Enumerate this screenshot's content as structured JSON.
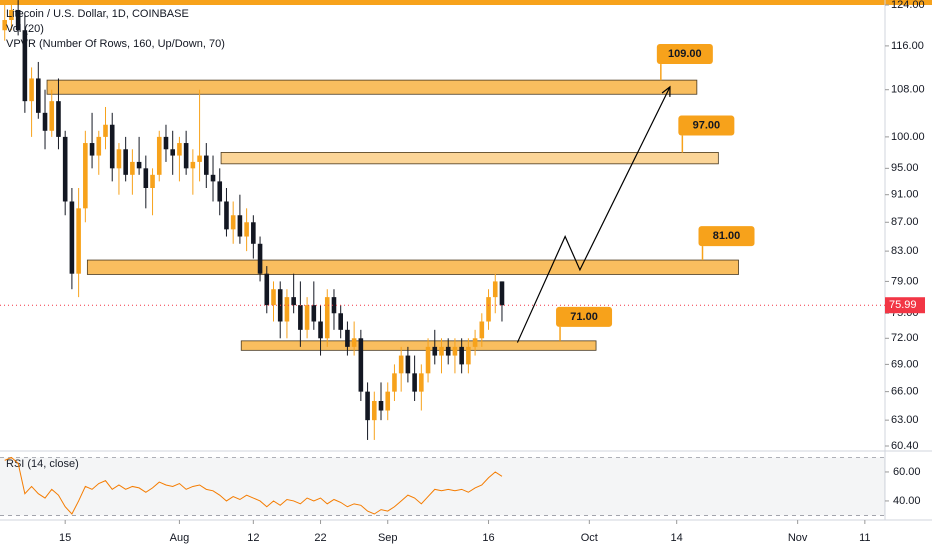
{
  "chart_data": {
    "type": "candlestick",
    "title": "Litecoin / U.S. Dollar, 1D, COINBASE",
    "indicator_labels": [
      "Vol (20)",
      "VPVR (Number Of Rows, 160, Up/Down, 70)"
    ],
    "ylog": true,
    "ylim": [
      60.4,
      124
    ],
    "yticks": [
      {
        "value": 124,
        "label": "124.00"
      },
      {
        "value": 116,
        "label": "116.00"
      },
      {
        "value": 108,
        "label": "108.00"
      },
      {
        "value": 100,
        "label": "100.00"
      },
      {
        "value": 95,
        "label": "95.00"
      },
      {
        "value": 91,
        "label": "91.00"
      },
      {
        "value": 87,
        "label": "87.00"
      },
      {
        "value": 83,
        "label": "83.00"
      },
      {
        "value": 79,
        "label": "79.00"
      },
      {
        "value": 75,
        "label": "75.00"
      },
      {
        "value": 72,
        "label": "72.00"
      },
      {
        "value": 69,
        "label": "69.00"
      },
      {
        "value": 66,
        "label": "66.00"
      },
      {
        "value": 63,
        "label": "63.00"
      },
      {
        "value": 60.4,
        "label": "60.40"
      }
    ],
    "xlim": [
      4.3,
      136
    ],
    "xticks": [
      {
        "value": 14,
        "label": "15"
      },
      {
        "value": 31,
        "label": "Aug"
      },
      {
        "value": 42,
        "label": "12"
      },
      {
        "value": 52,
        "label": "22"
      },
      {
        "value": 62,
        "label": "Sep"
      },
      {
        "value": 77,
        "label": "16"
      },
      {
        "value": 92,
        "label": "Oct"
      },
      {
        "value": 105,
        "label": "14"
      },
      {
        "value": 123,
        "label": "Nov"
      },
      {
        "value": 133,
        "label": "11"
      }
    ],
    "up_color": "#f7a21b",
    "down_color": "#131722",
    "x": [
      5,
      6,
      7,
      8,
      9,
      10,
      11,
      12,
      13,
      14,
      15,
      16,
      17,
      18,
      19,
      20,
      21,
      22,
      23,
      24,
      25,
      26,
      27,
      28,
      29,
      30,
      31,
      32,
      33,
      34,
      35,
      36,
      37,
      38,
      39,
      40,
      41,
      42,
      43,
      44,
      45,
      46,
      47,
      48,
      49,
      50,
      51,
      52,
      53,
      54,
      55,
      56,
      57,
      58,
      59,
      60,
      61,
      62,
      63,
      64,
      65,
      66,
      67,
      68,
      69,
      70,
      71,
      72,
      73,
      74,
      75,
      76,
      77,
      78,
      79
    ],
    "ohlc": [
      [
        119,
        124,
        117,
        121
      ],
      [
        121,
        125,
        119,
        123
      ],
      [
        123,
        125,
        118,
        119
      ],
      [
        119,
        122,
        104,
        106
      ],
      [
        106,
        112,
        100,
        110
      ],
      [
        110,
        113,
        103,
        104
      ],
      [
        104,
        108,
        98,
        101
      ],
      [
        101,
        108,
        100,
        106
      ],
      [
        106,
        110,
        98,
        100
      ],
      [
        100,
        101,
        88,
        90
      ],
      [
        90,
        92,
        78,
        80
      ],
      [
        80,
        92,
        77,
        89
      ],
      [
        89,
        101,
        87,
        99
      ],
      [
        99,
        104,
        95,
        97
      ],
      [
        97,
        101,
        94,
        100
      ],
      [
        100,
        105,
        98,
        102
      ],
      [
        102,
        104,
        93,
        95
      ],
      [
        95,
        99,
        91,
        98
      ],
      [
        98,
        100,
        93,
        94
      ],
      [
        94,
        98,
        91,
        96
      ],
      [
        96,
        100,
        94,
        95
      ],
      [
        95,
        97,
        89,
        92
      ],
      [
        92,
        95,
        88,
        94
      ],
      [
        94,
        101,
        93,
        100
      ],
      [
        100,
        102,
        96,
        98
      ],
      [
        98,
        101,
        94,
        97
      ],
      [
        97,
        100,
        93,
        99
      ],
      [
        99,
        101,
        94,
        95
      ],
      [
        95,
        98,
        91,
        96
      ],
      [
        96,
        108,
        93,
        97
      ],
      [
        97,
        99,
        92,
        94
      ],
      [
        94,
        97,
        90,
        93
      ],
      [
        93,
        95,
        88,
        90
      ],
      [
        90,
        92,
        85,
        86
      ],
      [
        86,
        90,
        84,
        88
      ],
      [
        88,
        91,
        84,
        85
      ],
      [
        85,
        89,
        83,
        87
      ],
      [
        87,
        88,
        82,
        84
      ],
      [
        84,
        85,
        79,
        80
      ],
      [
        80,
        81,
        75,
        76
      ],
      [
        76,
        79,
        74,
        78
      ],
      [
        78,
        79,
        72,
        74
      ],
      [
        74,
        78,
        72,
        77
      ],
      [
        77,
        80,
        75,
        76
      ],
      [
        76,
        79,
        71,
        73
      ],
      [
        73,
        77,
        72,
        76
      ],
      [
        76,
        79,
        73,
        74
      ],
      [
        74,
        76,
        70,
        72
      ],
      [
        72,
        78,
        71,
        77
      ],
      [
        77,
        78,
        73,
        75
      ],
      [
        75,
        76,
        72,
        73
      ],
      [
        73,
        74,
        70,
        71
      ],
      [
        71,
        74,
        70,
        72
      ],
      [
        72,
        73,
        65,
        66
      ],
      [
        66,
        67,
        61,
        63
      ],
      [
        63,
        66,
        61,
        65
      ],
      [
        65,
        67,
        63,
        64
      ],
      [
        64,
        67,
        63,
        66
      ],
      [
        66,
        69,
        65,
        68
      ],
      [
        68,
        71,
        66,
        70
      ],
      [
        70,
        71,
        67,
        68
      ],
      [
        68,
        70,
        65,
        66
      ],
      [
        66,
        69,
        64,
        68
      ],
      [
        68,
        72,
        67,
        71
      ],
      [
        71,
        73,
        69,
        70
      ],
      [
        70,
        72,
        68,
        71
      ],
      [
        71,
        72,
        69,
        70
      ],
      [
        70,
        72,
        68,
        71
      ],
      [
        71,
        72,
        68,
        69
      ],
      [
        69,
        72,
        68,
        71
      ],
      [
        71,
        73,
        70,
        72
      ],
      [
        72,
        75,
        71,
        74
      ],
      [
        74,
        78,
        73,
        77
      ],
      [
        77,
        80,
        75,
        79
      ],
      [
        79,
        79,
        74,
        75.99
      ]
    ],
    "last_price": {
      "value": 75.99,
      "label": "75.99"
    },
    "levels": [
      {
        "value": 109,
        "label": "109.00",
        "zone": [
          107.2,
          109.7
        ],
        "x": [
          11.3,
          108
        ]
      },
      {
        "value": 97,
        "label": "97.00",
        "zone": [
          95.7,
          97.5
        ],
        "x": [
          37.2,
          111.2
        ]
      },
      {
        "value": 81,
        "label": "81.00",
        "zone": [
          79.9,
          81.8
        ],
        "x": [
          17.3,
          114.2
        ]
      },
      {
        "value": 71,
        "label": "71.00",
        "zone": [
          70.6,
          71.7
        ],
        "x": [
          40.2,
          93
        ]
      }
    ],
    "projection": {
      "x": [
        81.3,
        88.4,
        90.6,
        104
      ],
      "y": [
        71.5,
        85,
        80.5,
        108.5
      ]
    },
    "rsi": {
      "label": "RSI (14, close)",
      "color": "#f57c00",
      "ylim": [
        30.3,
        71.7
      ],
      "yticks": [
        {
          "value": 60,
          "label": "60.00"
        },
        {
          "value": 40,
          "label": "40.00"
        }
      ],
      "band": [
        70,
        30
      ],
      "values": [
        68,
        70,
        66,
        45,
        50,
        45,
        42,
        48,
        44,
        36,
        31,
        40,
        50,
        48,
        52,
        54,
        48,
        51,
        48,
        50,
        49,
        46,
        49,
        53,
        51,
        50,
        52,
        48,
        50,
        51,
        48,
        47,
        44,
        40,
        43,
        41,
        44,
        42,
        40,
        36,
        40,
        37,
        41,
        40,
        38,
        42,
        40,
        42,
        38,
        41,
        39,
        36,
        38,
        37,
        33,
        31,
        34,
        33,
        36,
        40,
        44,
        42,
        38,
        43,
        48,
        47,
        48,
        47,
        48,
        46,
        49,
        51,
        56,
        60,
        57
      ]
    }
  }
}
